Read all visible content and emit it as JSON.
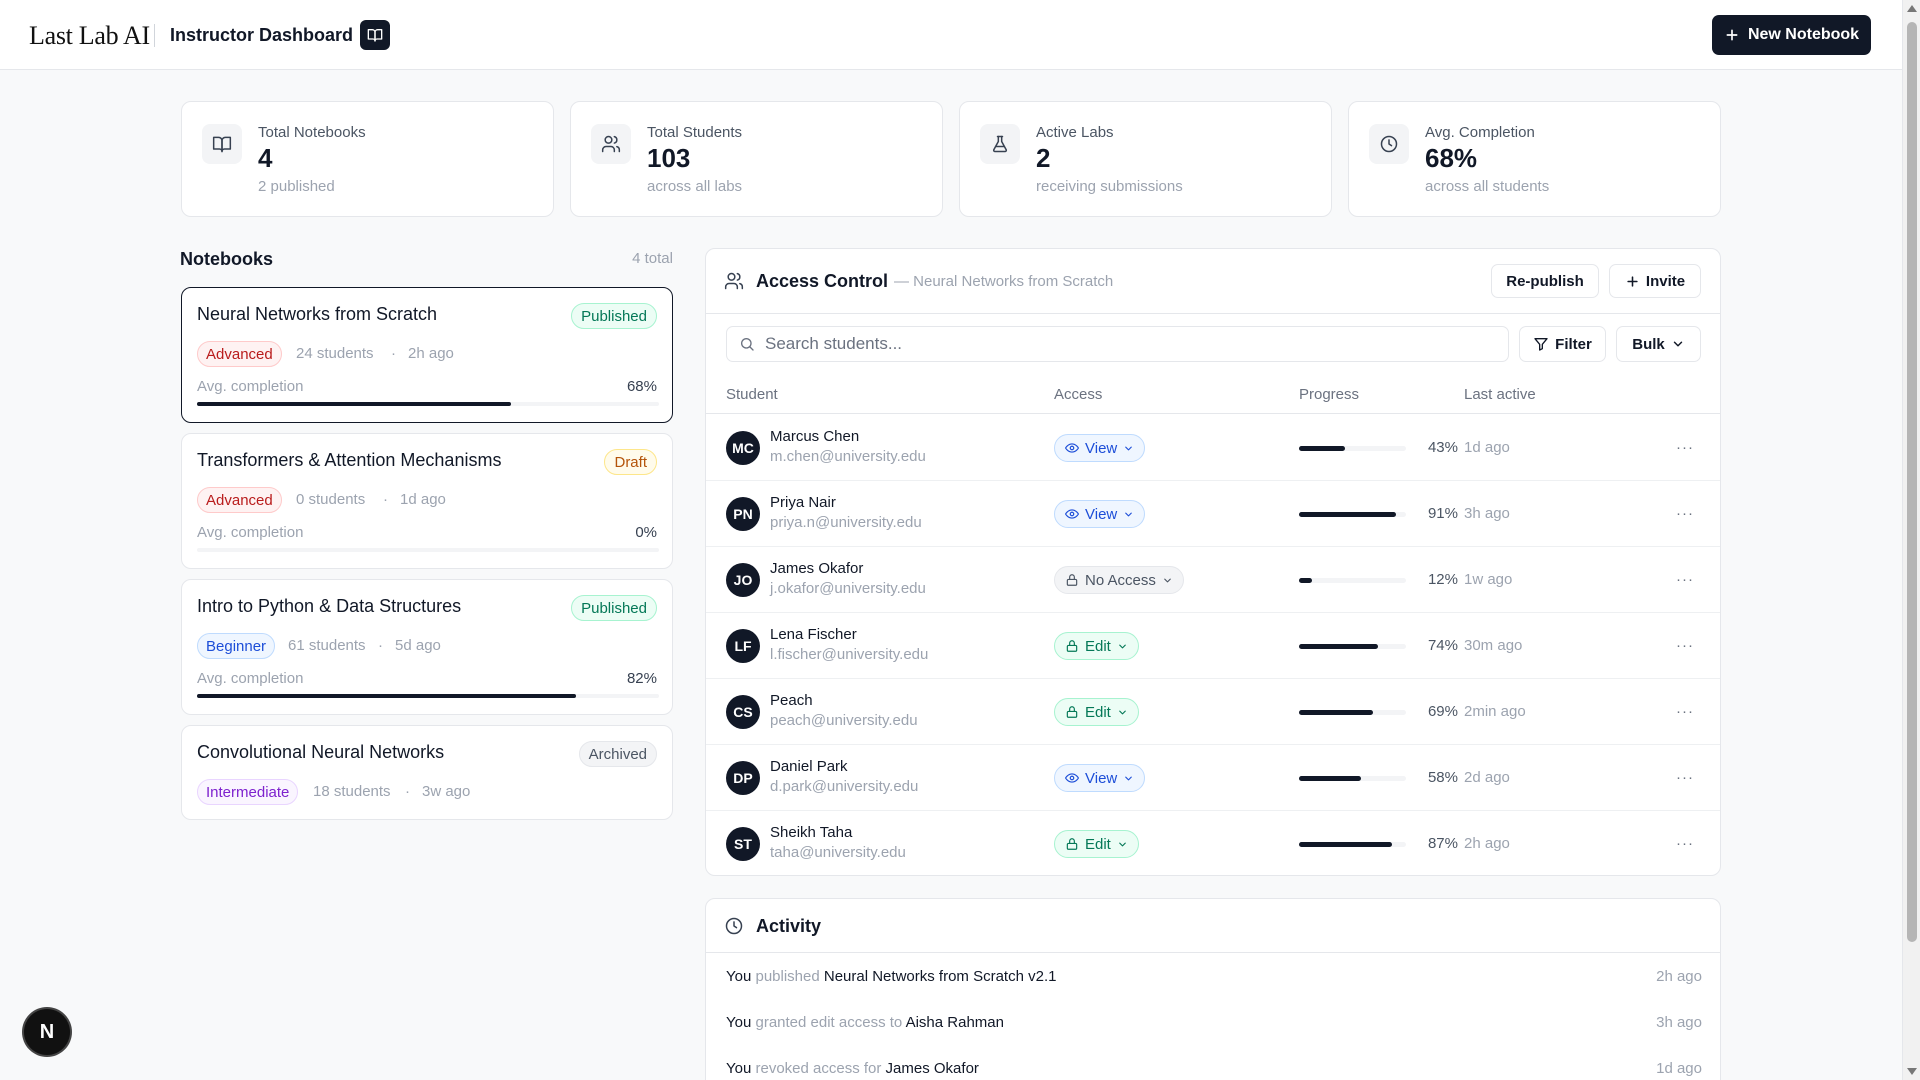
{
  "header": {
    "logo": "Last Lab AI",
    "title": "Instructor Dashboard",
    "new_notebook_label": "New Notebook"
  },
  "stats": [
    {
      "icon": "book-icon",
      "label": "Total Notebooks",
      "value": "4",
      "sub": "2 published"
    },
    {
      "icon": "users-icon",
      "label": "Total Students",
      "value": "103",
      "sub": "across all labs"
    },
    {
      "icon": "flask-icon",
      "label": "Active Labs",
      "value": "2",
      "sub": "receiving submissions"
    },
    {
      "icon": "clock-icon",
      "label": "Avg. Completion",
      "value": "68%",
      "sub": "across all students"
    }
  ],
  "notebooks": {
    "heading": "Notebooks",
    "total": "4 total",
    "avg_label": "Avg. completion",
    "items": [
      {
        "title": "Neural Networks from Scratch",
        "status": "Published",
        "level": "Advanced",
        "students": "24 students",
        "sep": "·",
        "updated": "2h ago",
        "completion": "68%",
        "completion_value": 0.68
      },
      {
        "title": "Transformers & Attention Mechanisms",
        "status": "Draft",
        "level": "Advanced",
        "students": "0 students",
        "sep": "·",
        "updated": "1d ago",
        "completion": "0%",
        "completion_value": 0
      },
      {
        "title": "Intro to Python & Data Structures",
        "status": "Published",
        "level": "Beginner",
        "students": "61 students",
        "sep": "·",
        "updated": "5d ago",
        "completion": "82%",
        "completion_value": 0.82
      },
      {
        "title": "Convolutional Neural Networks",
        "status": "Archived",
        "level": "Intermediate",
        "students": "18 students",
        "sep": "·",
        "updated": "3w ago"
      }
    ]
  },
  "access": {
    "title": "Access Control",
    "subtitle": "— Neural Networks from Scratch",
    "republish_label": "Re-publish",
    "invite_label": "Invite",
    "search_placeholder": "Search students...",
    "filter_label": "Filter",
    "bulk_label": "Bulk",
    "columns": [
      "Student",
      "Access",
      "Progress",
      "Last active"
    ],
    "more": "···",
    "rows": [
      {
        "initials": "MC",
        "name": "Marcus Chen",
        "email": "m.chen@university.edu",
        "access": "View",
        "progress": "43%",
        "progress_value": 0.43,
        "last": "1d ago"
      },
      {
        "initials": "PN",
        "name": "Priya Nair",
        "email": "priya.n@university.edu",
        "access": "View",
        "progress": "91%",
        "progress_value": 0.91,
        "last": "3h ago"
      },
      {
        "initials": "JO",
        "name": "James Okafor",
        "email": "j.okafor@university.edu",
        "access": "No Access",
        "progress": "12%",
        "progress_value": 0.12,
        "last": "1w ago"
      },
      {
        "initials": "LF",
        "name": "Lena Fischer",
        "email": "l.fischer@university.edu",
        "access": "Edit",
        "progress": "74%",
        "progress_value": 0.74,
        "last": "30m ago"
      },
      {
        "initials": "CS",
        "name": "Peach",
        "email": "peach@university.edu",
        "access": "Edit",
        "progress": "69%",
        "progress_value": 0.69,
        "last": "2min ago"
      },
      {
        "initials": "DP",
        "name": "Daniel Park",
        "email": "d.park@university.edu",
        "access": "View",
        "progress": "58%",
        "progress_value": 0.58,
        "last": "2d ago"
      },
      {
        "initials": "ST",
        "name": "Sheikh Taha",
        "email": "taha@university.edu",
        "access": "Edit",
        "progress": "87%",
        "progress_value": 0.87,
        "last": "2h ago"
      }
    ]
  },
  "activity": {
    "title": "Activity",
    "items": [
      {
        "actor": "You",
        "verb": "published",
        "target": "Neural Networks from Scratch v2.1",
        "time": "2h ago"
      },
      {
        "actor": "You",
        "verb": "granted edit access to",
        "target": "Aisha Rahman",
        "time": "3h ago"
      },
      {
        "actor": "You",
        "verb": "revoked access for",
        "target": "James Okafor",
        "time": "1d ago"
      }
    ]
  },
  "dev_badge": "N"
}
